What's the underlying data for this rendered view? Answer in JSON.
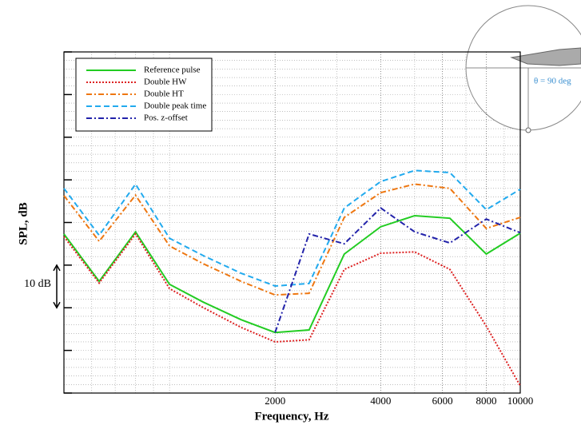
{
  "chart_data": {
    "type": "line",
    "x_label": "Frequency, Hz",
    "y_label": "SPL, dB",
    "x": [
      500,
      630,
      800,
      1000,
      1250,
      1600,
      2000,
      2500,
      3150,
      4000,
      5000,
      6300,
      8000,
      10000
    ],
    "xlim": [
      500,
      10000
    ],
    "xticks": [
      2000,
      4000,
      6000,
      8000,
      10000
    ],
    "x_log": true,
    "ylim": [
      0,
      80
    ],
    "yticks": [
      0,
      10,
      20,
      30,
      40,
      50,
      60,
      70,
      80
    ],
    "grid": true,
    "legend": "upper left",
    "series": [
      {
        "name": "Reference pulse",
        "color": "#22cc22",
        "dash": "solid",
        "values": [
          37.3,
          26.2,
          37.8,
          25.5,
          21.3,
          17.2,
          14.2,
          14.8,
          32.6,
          39,
          41.6,
          41,
          32.6,
          37.5
        ]
      },
      {
        "name": "Double HW",
        "color": "#dd2222",
        "dash": "dot",
        "values": [
          36.7,
          25.8,
          37.3,
          24.5,
          20,
          15.4,
          12,
          12.5,
          29,
          32.8,
          33.1,
          29,
          15.7,
          1.7
        ]
      },
      {
        "name": "Double HT",
        "color": "#ee7711",
        "dash": "dashdot",
        "values": [
          46.3,
          35.6,
          46.4,
          34.5,
          30.3,
          26.2,
          23,
          23.4,
          41.2,
          47,
          49,
          48,
          38.6,
          41.2
        ]
      },
      {
        "name": "Double peak time",
        "color": "#22aaee",
        "dash": "dash",
        "values": [
          48,
          37,
          49,
          36.3,
          32.2,
          28.1,
          25.1,
          25.7,
          43.4,
          49.6,
          52.2,
          51.7,
          43,
          47.8
        ]
      },
      {
        "name": "Pos. z-offset",
        "color": "#2222aa",
        "dash": "dashdot",
        "values": [
          null,
          null,
          null,
          null,
          null,
          null,
          14.2,
          37.3,
          35,
          43.4,
          37.8,
          35.2,
          40.8,
          37.6
        ]
      }
    ],
    "scale_bar": {
      "label": "10 dB",
      "value": 10
    },
    "annotation": "θ = 90 deg"
  }
}
